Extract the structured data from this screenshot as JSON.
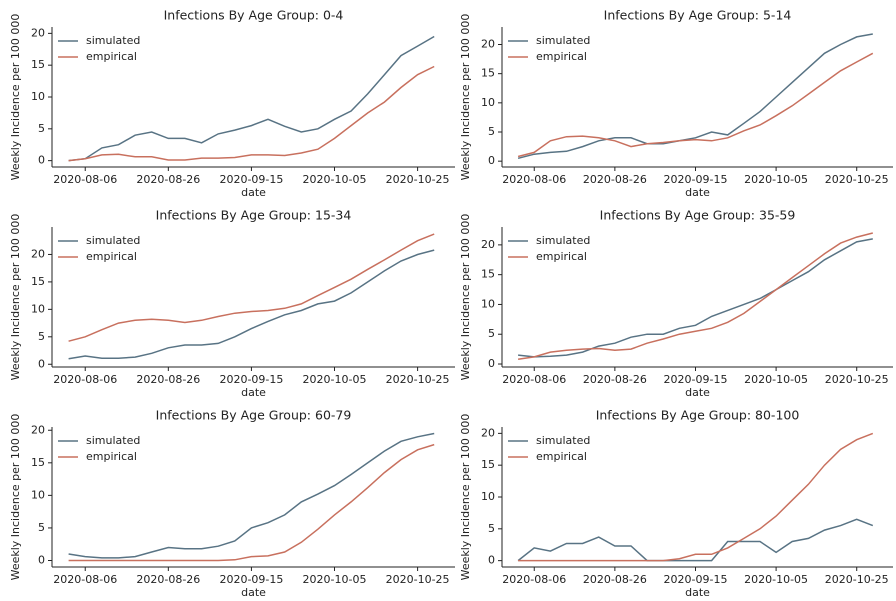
{
  "chart_data": [
    {
      "type": "line",
      "title": "Infections By Age Group: 0-4",
      "xlabel": "date",
      "ylabel": "Weekly Incidence per 100 000",
      "x": [
        "2020-08-02",
        "2020-08-06",
        "2020-08-10",
        "2020-08-14",
        "2020-08-18",
        "2020-08-22",
        "2020-08-26",
        "2020-08-30",
        "2020-09-03",
        "2020-09-07",
        "2020-09-11",
        "2020-09-15",
        "2020-09-19",
        "2020-09-23",
        "2020-09-27",
        "2020-10-01",
        "2020-10-05",
        "2020-10-09",
        "2020-10-13",
        "2020-10-17",
        "2020-10-21",
        "2020-10-25",
        "2020-10-29"
      ],
      "series": [
        {
          "name": "simulated",
          "color": "#587384",
          "values": [
            0,
            0.3,
            2,
            2.5,
            4,
            4.5,
            3.5,
            3.5,
            2.8,
            4.2,
            4.8,
            5.5,
            6.5,
            5.4,
            4.5,
            5,
            6.5,
            7.8,
            10.5,
            13.5,
            16.5,
            18,
            19.5
          ]
        },
        {
          "name": "empirical",
          "color": "#c8705e",
          "values": [
            0,
            0.3,
            0.9,
            1,
            0.6,
            0.6,
            0.1,
            0.1,
            0.4,
            0.4,
            0.5,
            0.9,
            0.9,
            0.8,
            1.2,
            1.8,
            3.5,
            5.5,
            7.5,
            9.2,
            11.5,
            13.5,
            14.8
          ]
        }
      ],
      "xlim": [
        "2020-07-29",
        "2020-11-03"
      ],
      "xticks": [
        "2020-08-06",
        "2020-08-26",
        "2020-09-15",
        "2020-10-05",
        "2020-10-25"
      ],
      "ylim": [
        -1,
        21
      ],
      "yticks": [
        0,
        5,
        10,
        15,
        20
      ],
      "legend": "upper left"
    },
    {
      "type": "line",
      "title": "Infections By Age Group: 5-14",
      "xlabel": "date",
      "ylabel": "Weekly Incidence per 100 000",
      "x": [
        "2020-08-02",
        "2020-08-06",
        "2020-08-10",
        "2020-08-14",
        "2020-08-18",
        "2020-08-22",
        "2020-08-26",
        "2020-08-30",
        "2020-09-03",
        "2020-09-07",
        "2020-09-11",
        "2020-09-15",
        "2020-09-19",
        "2020-09-23",
        "2020-09-27",
        "2020-10-01",
        "2020-10-05",
        "2020-10-09",
        "2020-10-13",
        "2020-10-17",
        "2020-10-21",
        "2020-10-25",
        "2020-10-29"
      ],
      "series": [
        {
          "name": "simulated",
          "color": "#587384",
          "values": [
            0.5,
            1.2,
            1.5,
            1.7,
            2.5,
            3.5,
            4,
            4,
            3,
            3,
            3.5,
            4,
            5,
            4.5,
            6.5,
            8.5,
            11,
            13.5,
            16,
            18.5,
            20,
            21.3,
            21.8
          ]
        },
        {
          "name": "empirical",
          "color": "#c8705e",
          "values": [
            0.8,
            1.5,
            3.5,
            4.2,
            4.3,
            4,
            3.5,
            2.5,
            3,
            3.2,
            3.5,
            3.7,
            3.5,
            4,
            5.2,
            6.2,
            7.8,
            9.5,
            11.5,
            13.5,
            15.5,
            17,
            18.5
          ]
        }
      ],
      "xlim": [
        "2020-07-29",
        "2020-11-03"
      ],
      "xticks": [
        "2020-08-06",
        "2020-08-26",
        "2020-09-15",
        "2020-10-05",
        "2020-10-25"
      ],
      "ylim": [
        -1,
        23
      ],
      "yticks": [
        0,
        5,
        10,
        15,
        20
      ],
      "legend": "upper left"
    },
    {
      "type": "line",
      "title": "Infections By Age Group: 15-34",
      "xlabel": "date",
      "ylabel": "Weekly Incidence per 100 000",
      "x": [
        "2020-08-02",
        "2020-08-06",
        "2020-08-10",
        "2020-08-14",
        "2020-08-18",
        "2020-08-22",
        "2020-08-26",
        "2020-08-30",
        "2020-09-03",
        "2020-09-07",
        "2020-09-11",
        "2020-09-15",
        "2020-09-19",
        "2020-09-23",
        "2020-09-27",
        "2020-10-01",
        "2020-10-05",
        "2020-10-09",
        "2020-10-13",
        "2020-10-17",
        "2020-10-21",
        "2020-10-25",
        "2020-10-29"
      ],
      "series": [
        {
          "name": "simulated",
          "color": "#587384",
          "values": [
            1,
            1.5,
            1.1,
            1.1,
            1.3,
            2,
            3,
            3.5,
            3.5,
            3.8,
            5,
            6.5,
            7.8,
            9,
            9.8,
            11,
            11.5,
            13,
            15,
            17,
            18.8,
            20,
            20.8
          ]
        },
        {
          "name": "empirical",
          "color": "#c8705e",
          "values": [
            4.2,
            5,
            6.3,
            7.5,
            8,
            8.2,
            8,
            7.6,
            8,
            8.7,
            9.3,
            9.6,
            9.8,
            10.2,
            11,
            12.5,
            14,
            15.5,
            17.3,
            19,
            20.8,
            22.5,
            23.7
          ]
        }
      ],
      "xlim": [
        "2020-07-29",
        "2020-11-03"
      ],
      "xticks": [
        "2020-08-06",
        "2020-08-26",
        "2020-09-15",
        "2020-10-05",
        "2020-10-25"
      ],
      "ylim": [
        -0.5,
        25
      ],
      "yticks": [
        0,
        5,
        10,
        15,
        20
      ],
      "legend": "upper left"
    },
    {
      "type": "line",
      "title": "Infections By Age Group: 35-59",
      "xlabel": "date",
      "ylabel": "Weekly Incidence per 100 000",
      "x": [
        "2020-08-02",
        "2020-08-06",
        "2020-08-10",
        "2020-08-14",
        "2020-08-18",
        "2020-08-22",
        "2020-08-26",
        "2020-08-30",
        "2020-09-03",
        "2020-09-07",
        "2020-09-11",
        "2020-09-15",
        "2020-09-19",
        "2020-09-23",
        "2020-09-27",
        "2020-10-01",
        "2020-10-05",
        "2020-10-09",
        "2020-10-13",
        "2020-10-17",
        "2020-10-21",
        "2020-10-25",
        "2020-10-29"
      ],
      "series": [
        {
          "name": "simulated",
          "color": "#587384",
          "values": [
            1.5,
            1.2,
            1.3,
            1.5,
            2,
            3,
            3.5,
            4.5,
            5,
            5,
            6,
            6.5,
            8,
            9,
            10,
            11,
            12.5,
            14,
            15.5,
            17.5,
            19,
            20.5,
            21
          ]
        },
        {
          "name": "empirical",
          "color": "#c8705e",
          "values": [
            0.8,
            1.2,
            2,
            2.3,
            2.5,
            2.6,
            2.3,
            2.5,
            3.5,
            4.2,
            5,
            5.5,
            6,
            7,
            8.5,
            10.5,
            12.5,
            14.5,
            16.5,
            18.5,
            20.3,
            21.3,
            22
          ]
        }
      ],
      "xlim": [
        "2020-07-29",
        "2020-11-03"
      ],
      "xticks": [
        "2020-08-06",
        "2020-08-26",
        "2020-09-15",
        "2020-10-05",
        "2020-10-25"
      ],
      "ylim": [
        -0.5,
        23
      ],
      "yticks": [
        0,
        5,
        10,
        15,
        20
      ],
      "legend": "upper left"
    },
    {
      "type": "line",
      "title": "Infections By Age Group: 60-79",
      "xlabel": "date",
      "ylabel": "Weekly Incidence per 100 000",
      "x": [
        "2020-08-02",
        "2020-08-06",
        "2020-08-10",
        "2020-08-14",
        "2020-08-18",
        "2020-08-22",
        "2020-08-26",
        "2020-08-30",
        "2020-09-03",
        "2020-09-07",
        "2020-09-11",
        "2020-09-15",
        "2020-09-19",
        "2020-09-23",
        "2020-09-27",
        "2020-10-01",
        "2020-10-05",
        "2020-10-09",
        "2020-10-13",
        "2020-10-17",
        "2020-10-21",
        "2020-10-25",
        "2020-10-29"
      ],
      "series": [
        {
          "name": "simulated",
          "color": "#587384",
          "values": [
            1,
            0.6,
            0.4,
            0.4,
            0.6,
            1.3,
            2,
            1.8,
            1.8,
            2.2,
            3,
            5,
            5.8,
            7,
            9,
            10.2,
            11.5,
            13.2,
            15,
            16.8,
            18.3,
            19,
            19.5
          ]
        },
        {
          "name": "empirical",
          "color": "#c8705e",
          "values": [
            0,
            0,
            0,
            0,
            0,
            0,
            0,
            0,
            0,
            0,
            0.1,
            0.6,
            0.7,
            1.3,
            2.8,
            4.8,
            7,
            9,
            11.2,
            13.5,
            15.5,
            17,
            17.8
          ]
        }
      ],
      "xlim": [
        "2020-07-29",
        "2020-11-03"
      ],
      "xticks": [
        "2020-08-06",
        "2020-08-26",
        "2020-09-15",
        "2020-10-05",
        "2020-10-25"
      ],
      "ylim": [
        -1,
        20.5
      ],
      "yticks": [
        0,
        5,
        10,
        15,
        20
      ],
      "legend": "upper left"
    },
    {
      "type": "line",
      "title": "Infections By Age Group: 80-100",
      "xlabel": "date",
      "ylabel": "Weekly Incidence per 100 000",
      "x": [
        "2020-08-02",
        "2020-08-06",
        "2020-08-10",
        "2020-08-14",
        "2020-08-18",
        "2020-08-22",
        "2020-08-26",
        "2020-08-30",
        "2020-09-03",
        "2020-09-07",
        "2020-09-11",
        "2020-09-15",
        "2020-09-19",
        "2020-09-23",
        "2020-09-27",
        "2020-10-01",
        "2020-10-05",
        "2020-10-09",
        "2020-10-13",
        "2020-10-17",
        "2020-10-21",
        "2020-10-25",
        "2020-10-29"
      ],
      "series": [
        {
          "name": "simulated",
          "color": "#587384",
          "values": [
            0,
            2,
            1.5,
            2.7,
            2.7,
            3.7,
            2.3,
            2.3,
            0,
            0,
            0,
            0,
            0,
            3,
            3,
            3,
            1.3,
            3,
            3.5,
            4.8,
            5.5,
            6.5,
            5.5
          ]
        },
        {
          "name": "empirical",
          "color": "#c8705e",
          "values": [
            0,
            0,
            0,
            0,
            0,
            0,
            0,
            0,
            0,
            0,
            0.3,
            1,
            1,
            2,
            3.5,
            5,
            7,
            9.5,
            12,
            15,
            17.5,
            19,
            20
          ]
        }
      ],
      "xlim": [
        "2020-07-29",
        "2020-11-03"
      ],
      "xticks": [
        "2020-08-06",
        "2020-08-26",
        "2020-09-15",
        "2020-10-05",
        "2020-10-25"
      ],
      "ylim": [
        -1,
        21
      ],
      "yticks": [
        0,
        5,
        10,
        15,
        20
      ],
      "legend": "upper left"
    }
  ]
}
